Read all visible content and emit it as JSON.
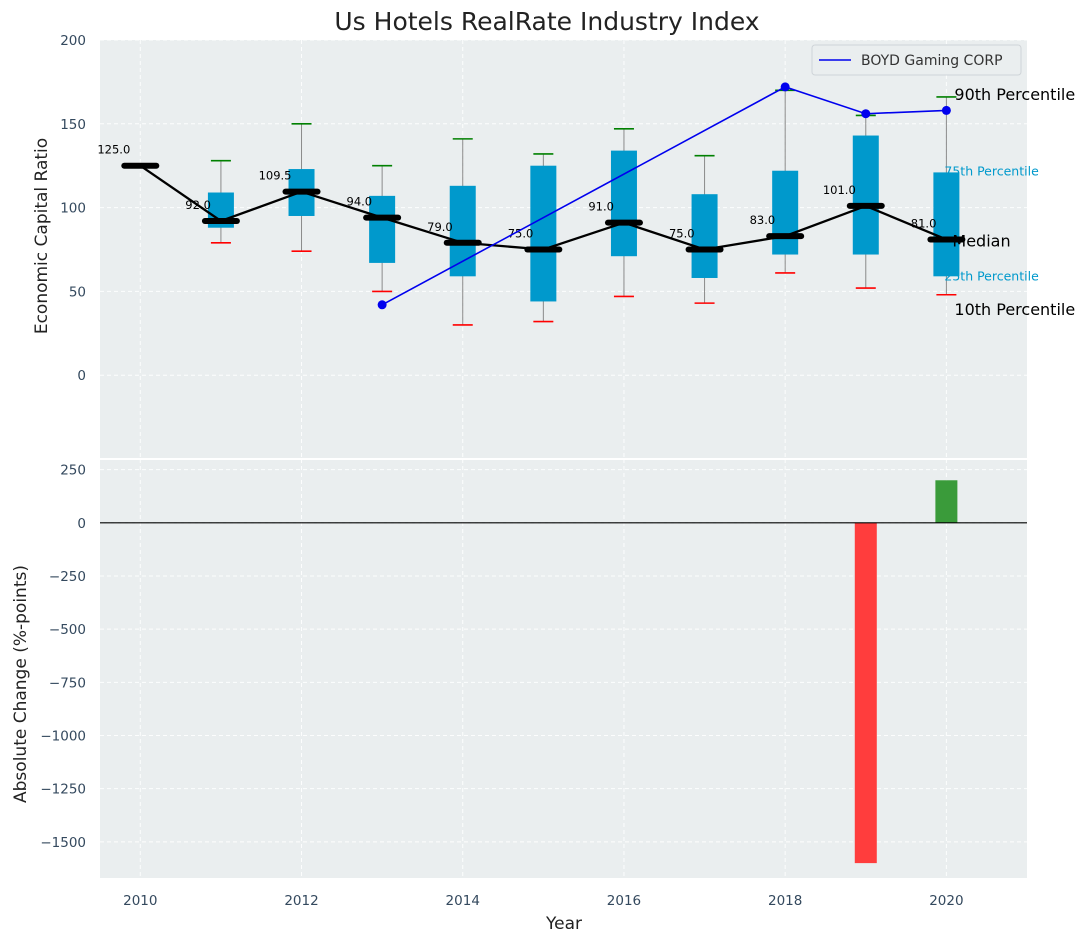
{
  "chart_data": [
    {
      "type": "box",
      "title": "Us Hotels RealRate Industry Index",
      "xlabel": "",
      "ylabel": "Economic Capital Ratio",
      "xlim": [
        2009.5,
        2021
      ],
      "ylim": [
        -50,
        200
      ],
      "yticks": [
        0,
        50,
        100,
        150,
        200
      ],
      "grid": true,
      "legend": {
        "position": "top-right",
        "entries": [
          "BOYD Gaming CORP"
        ]
      },
      "boxes": [
        {
          "year": 2011,
          "p10": 79,
          "p25": 88,
          "p75": 109,
          "p90": 128
        },
        {
          "year": 2012,
          "p10": 74,
          "p25": 95,
          "p75": 123,
          "p90": 150
        },
        {
          "year": 2013,
          "p10": 50,
          "p25": 67,
          "p75": 107,
          "p90": 125
        },
        {
          "year": 2014,
          "p10": 30,
          "p25": 59,
          "p75": 113,
          "p90": 141
        },
        {
          "year": 2015,
          "p10": 32,
          "p25": 44,
          "p75": 125,
          "p90": 132
        },
        {
          "year": 2016,
          "p10": 47,
          "p25": 71,
          "p75": 134,
          "p90": 147
        },
        {
          "year": 2017,
          "p10": 43,
          "p25": 58,
          "p75": 108,
          "p90": 131
        },
        {
          "year": 2018,
          "p10": 61,
          "p25": 72,
          "p75": 122,
          "p90": 170
        },
        {
          "year": 2019,
          "p10": 52,
          "p25": 72,
          "p75": 143,
          "p90": 155
        },
        {
          "year": 2020,
          "p10": 48,
          "p25": 59,
          "p75": 121,
          "p90": 166
        }
      ],
      "median": {
        "name": "Median",
        "x": [
          2010,
          2011,
          2012,
          2013,
          2014,
          2015,
          2016,
          2017,
          2018,
          2019,
          2020
        ],
        "values": [
          125,
          92,
          109.5,
          94,
          79,
          75,
          91,
          75,
          83,
          101,
          81
        ],
        "labels": [
          "125.0",
          "92.0",
          "109.5",
          "94.0",
          "79.0",
          "75.0",
          "91.0",
          "75.0",
          "83.0",
          "101.0",
          "81.0"
        ]
      },
      "company": {
        "name": "BOYD Gaming CORP",
        "x": [
          2013,
          2018,
          2019,
          2020
        ],
        "values": [
          42,
          172,
          156,
          158
        ]
      },
      "annotations": {
        "p90": "90th Percentile",
        "p75": "75th Percentile",
        "median": "Median",
        "p25": "25th Percentile",
        "p10": "10th Percentile"
      },
      "colors": {
        "box": "#0099cc",
        "median": "#000000",
        "company": "#0000ee",
        "whisker_top": "#008000",
        "whisker_bottom": "#ff0000",
        "background": "#eaeeef"
      }
    },
    {
      "type": "bar",
      "xlabel": "Year",
      "ylabel": "Absolute Change (%-points)",
      "xlim": [
        2009.5,
        2021
      ],
      "ylim": [
        -1670,
        300
      ],
      "xticks": [
        2010,
        2012,
        2014,
        2016,
        2018,
        2020
      ],
      "yticks": [
        -1500,
        -1250,
        -1000,
        -750,
        -500,
        -250,
        0,
        250
      ],
      "bars": [
        {
          "year": 2019,
          "value": -1600
        },
        {
          "year": 2020,
          "value": 200
        }
      ],
      "colors": {
        "negative": "#ff3d3d",
        "positive": "#3a9b3a"
      }
    }
  ]
}
